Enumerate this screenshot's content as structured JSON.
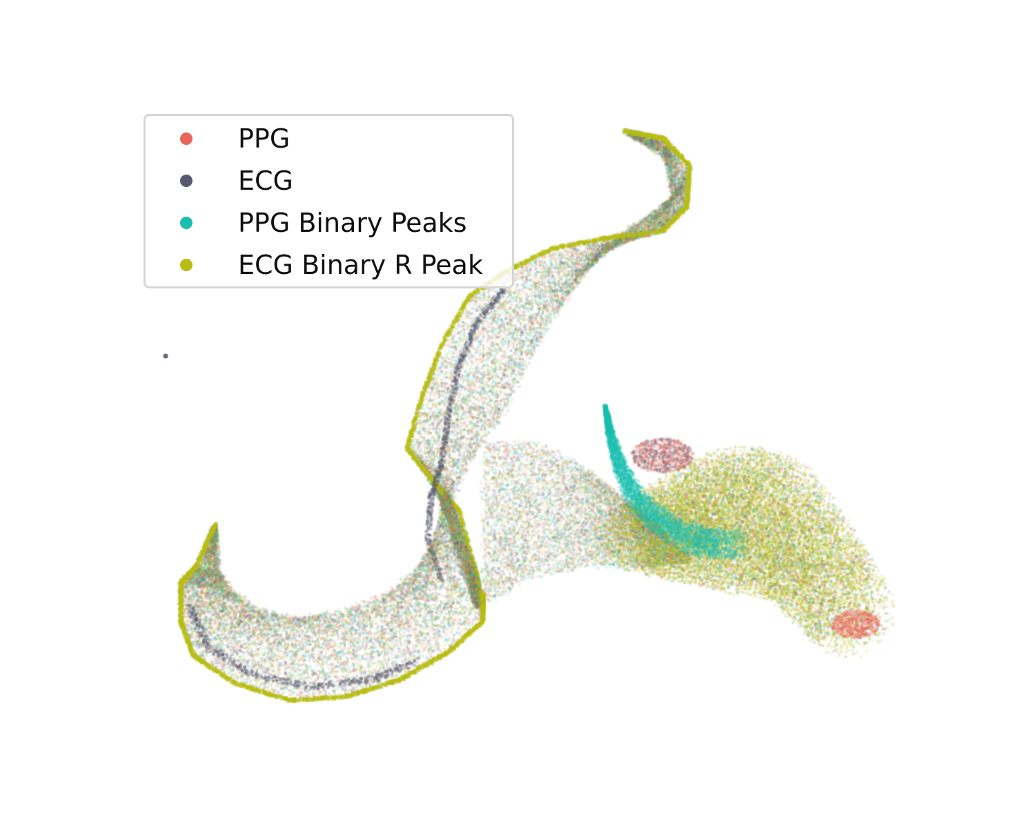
{
  "chart_data": {
    "type": "scatter",
    "title": "",
    "xlabel": "",
    "ylabel": "",
    "axes_visible": false,
    "grid": false,
    "legend_position": "upper-left",
    "series": [
      {
        "name": "PPG",
        "color": "#e8675d"
      },
      {
        "name": "ECG",
        "color": "#595870"
      },
      {
        "name": "PPG Binary Peaks",
        "color": "#1bbfb0"
      },
      {
        "name": "ECG Binary R Peak",
        "color": "#b8bd12"
      }
    ]
  },
  "legend": {
    "items": [
      {
        "label": "PPG",
        "color": "#e8675d"
      },
      {
        "label": "ECG",
        "color": "#595870"
      },
      {
        "label": "PPG Binary Peaks",
        "color": "#1bbfb0"
      },
      {
        "label": "ECG Binary R Peak",
        "color": "#b8bd12"
      }
    ]
  }
}
